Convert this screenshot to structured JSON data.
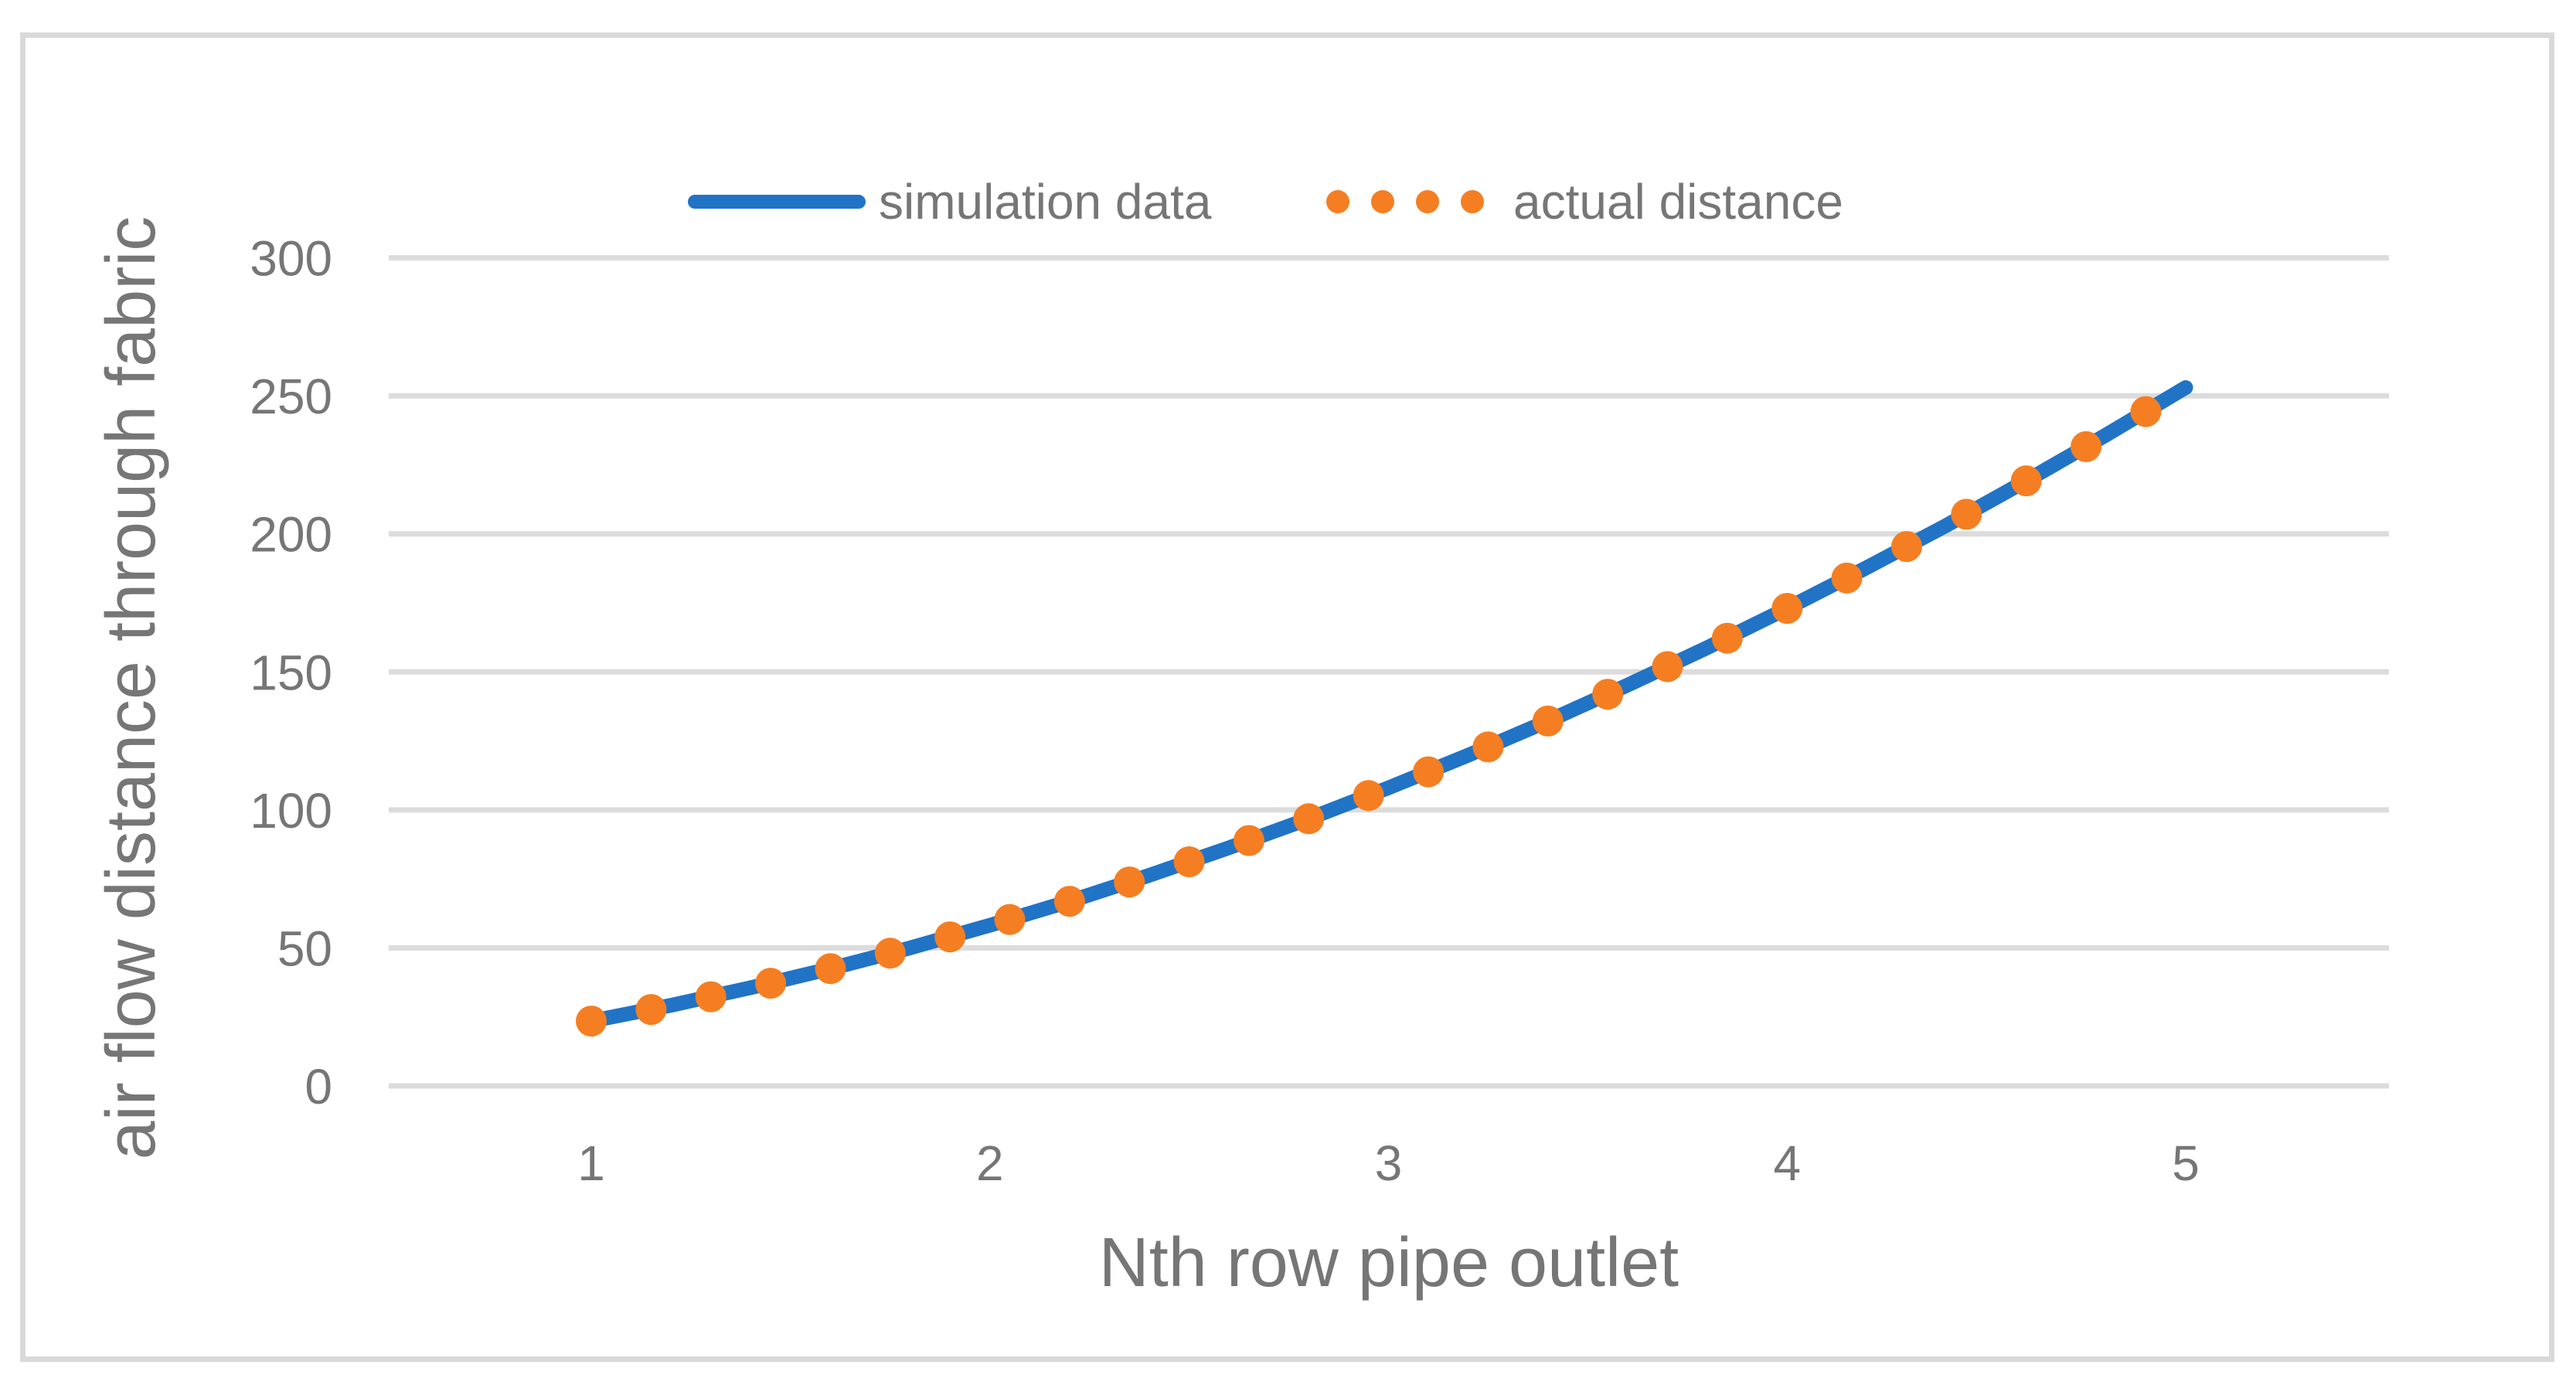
{
  "figure": {
    "background": "#ffffff",
    "frame_color": "#D9D9D9",
    "gridline_color": "#DCDCDC",
    "tick_text_color": "#767676",
    "title_text_color": "#767676"
  },
  "legend": {
    "items": [
      {
        "label": "simulation data",
        "marker": "line",
        "color": "#2173C6"
      },
      {
        "label": "actual distance",
        "marker": "dots",
        "color": "#F57E22"
      }
    ]
  },
  "axes": {
    "x": {
      "title": "Nth row pipe outlet",
      "ticks": [
        "1",
        "2",
        "3",
        "4",
        "5"
      ]
    },
    "y": {
      "title": "air flow distance through fabric",
      "ticks": [
        "0",
        "50",
        "100",
        "150",
        "200",
        "250",
        "300"
      ]
    }
  },
  "chart_data": {
    "type": "line",
    "title": "",
    "xlabel": "Nth row pipe outlet",
    "ylabel": "air flow distance through fabric",
    "xlim": [
      0.43,
      5.57
    ],
    "ylim": [
      0,
      300
    ],
    "x_ticks": [
      1,
      2,
      3,
      4,
      5
    ],
    "y_ticks": [
      0,
      50,
      100,
      150,
      200,
      250,
      300
    ],
    "grid": "horizontal",
    "legend_position": "top-center",
    "series": [
      {
        "name": "simulation data",
        "type": "line",
        "color": "#2173C6",
        "line_width": 19,
        "x": [
          1.0,
          1.2,
          1.4,
          1.6,
          1.8,
          2.0,
          2.2,
          2.4,
          2.6,
          2.8,
          3.0,
          3.2,
          3.4,
          3.6,
          3.8,
          4.0,
          4.2,
          4.4,
          4.6,
          4.8,
          5.0
        ],
        "y": [
          23.5,
          29.2,
          35.6,
          42.5,
          50.0,
          58.2,
          66.9,
          76.3,
          86.3,
          96.8,
          108.0,
          119.8,
          132.2,
          145.2,
          158.8,
          173.0,
          187.8,
          203.1,
          219.2,
          235.8,
          253.0
        ]
      },
      {
        "name": "actual distance",
        "type": "scatter",
        "color": "#F57E22",
        "marker_radius": 20,
        "x": [
          1.0,
          1.15,
          1.3,
          1.45,
          1.6,
          1.75,
          1.9,
          2.05,
          2.2,
          2.35,
          2.5,
          2.65,
          2.8,
          2.95,
          3.1,
          3.25,
          3.4,
          3.55,
          3.7,
          3.85,
          4.0,
          4.15,
          4.3,
          4.45,
          4.6,
          4.75,
          4.9
        ],
        "y": [
          23.5,
          27.7,
          32.3,
          37.2,
          42.5,
          48.1,
          54.0,
          60.3,
          66.9,
          73.9,
          81.2,
          88.9,
          96.8,
          105.2,
          113.8,
          122.8,
          132.2,
          141.9,
          151.9,
          162.2,
          173.0,
          184.0,
          195.4,
          207.1,
          219.2,
          231.6,
          244.3
        ]
      }
    ]
  }
}
